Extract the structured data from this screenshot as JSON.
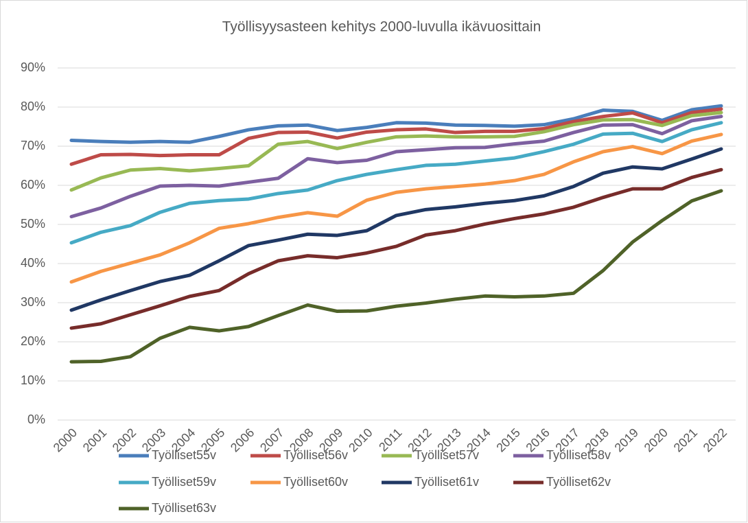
{
  "chart_data": {
    "type": "line",
    "title": "Työllisyysasteen kehitys 2000-luvulla ikävuosittain",
    "categories": [
      "2000",
      "2001",
      "2002",
      "2003",
      "2004",
      "2005",
      "2006",
      "2007",
      "2008",
      "2009",
      "2010",
      "2011",
      "2012",
      "2013",
      "2014",
      "2015",
      "2016",
      "2017",
      "2018",
      "2019",
      "2020",
      "2021",
      "2022"
    ],
    "series": [
      {
        "name": "Työlliset55v",
        "color": "#4a7ebb",
        "values": [
          71.5,
          71.2,
          71.0,
          71.2,
          71.0,
          72.5,
          74.2,
          75.2,
          75.4,
          74.0,
          74.8,
          76.0,
          75.9,
          75.4,
          75.3,
          75.1,
          75.5,
          77.0,
          79.2,
          78.9,
          76.6,
          79.3,
          80.3
        ]
      },
      {
        "name": "Työlliset56v",
        "color": "#be4b48",
        "values": [
          65.4,
          67.8,
          67.9,
          67.6,
          67.8,
          67.8,
          72.0,
          73.5,
          73.6,
          72.1,
          73.6,
          74.2,
          74.4,
          73.5,
          73.8,
          73.8,
          74.5,
          76.3,
          77.6,
          78.5,
          76.0,
          78.6,
          79.5
        ]
      },
      {
        "name": "Työlliset57v",
        "color": "#98b954",
        "values": [
          58.8,
          61.9,
          63.9,
          64.3,
          63.7,
          64.3,
          65.0,
          70.5,
          71.2,
          69.4,
          71.0,
          72.4,
          72.6,
          72.4,
          72.4,
          72.5,
          73.7,
          75.5,
          76.7,
          76.8,
          75.3,
          77.8,
          78.6
        ]
      },
      {
        "name": "Työlliset58v",
        "color": "#7d60a0",
        "values": [
          52.0,
          54.2,
          57.2,
          59.8,
          60.0,
          59.8,
          60.8,
          61.8,
          66.8,
          65.8,
          66.4,
          68.6,
          69.1,
          69.6,
          69.7,
          70.6,
          71.3,
          73.5,
          75.4,
          75.5,
          73.2,
          76.5,
          77.6
        ]
      },
      {
        "name": "Työlliset59v",
        "color": "#46aac5",
        "values": [
          45.3,
          48.0,
          49.7,
          53.1,
          55.4,
          56.1,
          56.5,
          57.9,
          58.8,
          61.2,
          62.8,
          64.0,
          65.1,
          65.4,
          66.2,
          67.0,
          68.6,
          70.5,
          73.1,
          73.3,
          71.2,
          74.2,
          76.0
        ]
      },
      {
        "name": "Työlliset60v",
        "color": "#f79646",
        "values": [
          35.3,
          38.0,
          40.1,
          42.2,
          45.3,
          49.0,
          50.2,
          51.8,
          53.0,
          52.1,
          56.2,
          58.2,
          59.1,
          59.7,
          60.3,
          61.2,
          62.8,
          66.0,
          68.6,
          69.9,
          68.1,
          71.3,
          73.0
        ]
      },
      {
        "name": "Työlliset61v",
        "color": "#203864",
        "values": [
          28.1,
          30.7,
          33.1,
          35.4,
          37.0,
          40.7,
          44.6,
          46.0,
          47.5,
          47.2,
          48.4,
          52.3,
          53.8,
          54.5,
          55.4,
          56.1,
          57.3,
          59.7,
          63.1,
          64.7,
          64.2,
          66.7,
          69.3
        ]
      },
      {
        "name": "Työlliset62v",
        "color": "#772c2a",
        "values": [
          23.5,
          24.6,
          26.9,
          29.2,
          31.6,
          33.1,
          37.4,
          40.7,
          42.0,
          41.5,
          42.7,
          44.4,
          47.3,
          48.4,
          50.1,
          51.5,
          52.7,
          54.4,
          56.9,
          59.1,
          59.1,
          62.0,
          64.0
        ]
      },
      {
        "name": "Työlliset63v",
        "color": "#4f6228",
        "values": [
          14.9,
          15.0,
          16.2,
          20.9,
          23.7,
          22.8,
          23.9,
          26.7,
          29.4,
          27.8,
          27.9,
          29.1,
          29.9,
          30.9,
          31.7,
          31.5,
          31.7,
          32.4,
          38.2,
          45.5,
          51.0,
          56.0,
          58.6
        ]
      }
    ],
    "ylim": [
      0,
      90
    ],
    "yticks": [
      {
        "value": 0,
        "label": "0%"
      },
      {
        "value": 10,
        "label": "10%"
      },
      {
        "value": 20,
        "label": "20%"
      },
      {
        "value": 30,
        "label": "30%"
      },
      {
        "value": 40,
        "label": "40%"
      },
      {
        "value": 50,
        "label": "50%"
      },
      {
        "value": 60,
        "label": "60%"
      },
      {
        "value": 70,
        "label": "70%"
      },
      {
        "value": 80,
        "label": "80%"
      },
      {
        "value": 90,
        "label": "90%"
      }
    ],
    "grid": true,
    "legend": "bottom"
  }
}
